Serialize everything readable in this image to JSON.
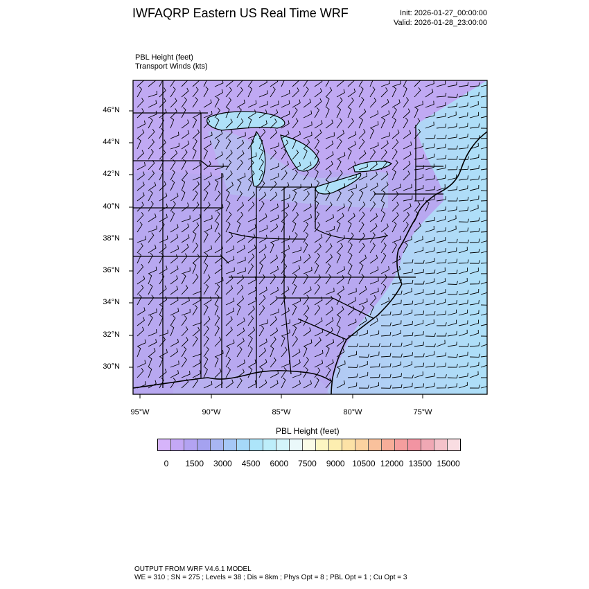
{
  "header": {
    "title": "IWFAQRP Eastern US Real Time WRF",
    "init": "Init: 2026-01-27_00:00:00",
    "valid": "Valid: 2026-01-28_23:00:00"
  },
  "fields": {
    "primary": "PBL Height   (feet)",
    "secondary": "Transport Winds   (kts)"
  },
  "map": {
    "lat_labels": [
      "46°N",
      "44°N",
      "42°N",
      "40°N",
      "38°N",
      "36°N",
      "34°N",
      "32°N",
      "30°N"
    ],
    "lon_labels": [
      "95°W",
      "90°W",
      "85°W",
      "80°W",
      "75°W"
    ],
    "colors": {
      "land_base": "#b8a8f0",
      "ocean_base": "#b0e0f8",
      "lines": "#000000"
    }
  },
  "colorbar": {
    "title": "PBL Height  (feet)",
    "labels": [
      "0",
      "1500",
      "3000",
      "4500",
      "6000",
      "7500",
      "9000",
      "10500",
      "12000",
      "13500",
      "15000"
    ],
    "colors": [
      "#d6b4fa",
      "#c4a8f6",
      "#b3a3f2",
      "#a5a2f0",
      "#a8b6f2",
      "#a6c8f6",
      "#a6d8f8",
      "#ade5fa",
      "#bdeefa",
      "#d3f4fa",
      "#eaf8fa",
      "#fbfbe7",
      "#fdf6c2",
      "#fdeeb0",
      "#fce2a6",
      "#fbd3a0",
      "#f9c19c",
      "#f7ad99",
      "#f59e9e",
      "#f294a2",
      "#f0a8b4",
      "#f4c2ca",
      "#f9dde2"
    ]
  },
  "footer": {
    "line1": "OUTPUT FROM WRF V4.6.1 MODEL",
    "line2": "WE = 310 ; SN = 275 ; Levels = 38 ; Dis = 8km ; Phys Opt = 8 ; PBL Opt = 1 ; Cu Opt = 3"
  }
}
